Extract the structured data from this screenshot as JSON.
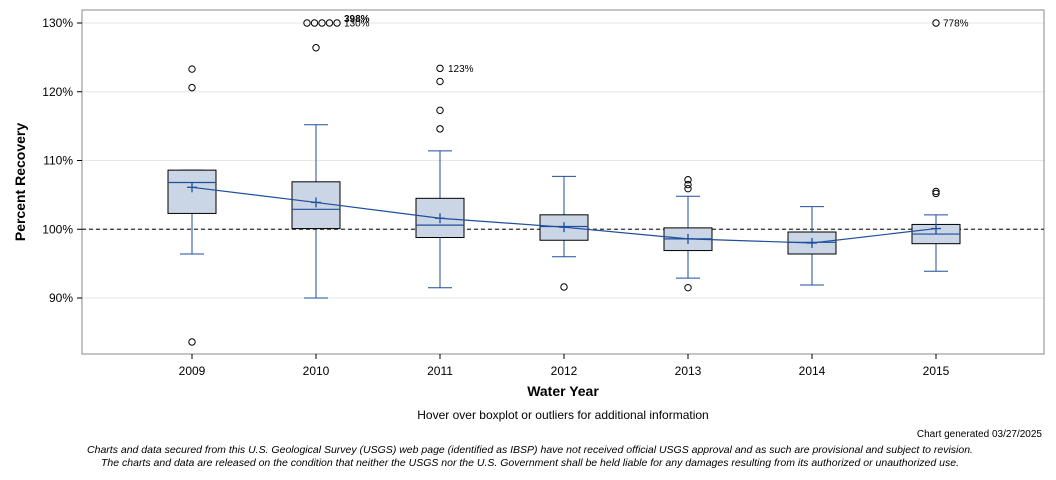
{
  "chart_data": {
    "type": "box",
    "xlabel": "Water Year",
    "ylabel": "Percent Recovery",
    "ylim": [
      81.5,
      131.5
    ],
    "yticks": [
      90,
      100,
      110,
      120,
      130
    ],
    "ytick_labels": [
      "90%",
      "100%",
      "110%",
      "120%",
      "130%"
    ],
    "reference_line": 100,
    "categories": [
      "2009",
      "2010",
      "2011",
      "2012",
      "2013",
      "2014",
      "2015"
    ],
    "boxes": [
      {
        "year": "2009",
        "q1": 102.3,
        "median": 106.8,
        "q3": 108.6,
        "whisker_low": 96.4,
        "whisker_high": 108.6,
        "mean": 106.1,
        "outliers": [
          123.3,
          120.6,
          83.6
        ]
      },
      {
        "year": "2010",
        "q1": 100.1,
        "median": 102.9,
        "q3": 106.9,
        "whisker_low": 90.0,
        "whisker_high": 115.2,
        "mean": 103.9,
        "outliers": [
          126.4
        ]
      },
      {
        "year": "2011",
        "q1": 98.8,
        "median": 100.6,
        "q3": 104.5,
        "whisker_low": 91.5,
        "whisker_high": 111.4,
        "mean": 101.6,
        "outliers": [
          123.4,
          121.5,
          117.3,
          114.6
        ]
      },
      {
        "year": "2012",
        "q1": 98.4,
        "median": 100.4,
        "q3": 102.1,
        "whisker_low": 96.0,
        "whisker_high": 107.7,
        "mean": 100.3,
        "outliers": [
          91.6
        ]
      },
      {
        "year": "2013",
        "q1": 96.9,
        "median": 98.6,
        "q3": 100.2,
        "whisker_low": 92.9,
        "whisker_high": 104.8,
        "mean": 98.6,
        "outliers": [
          107.2,
          106.5,
          105.9,
          91.5
        ]
      },
      {
        "year": "2014",
        "q1": 96.4,
        "median": 98.1,
        "q3": 99.6,
        "whisker_low": 91.9,
        "whisker_high": 103.3,
        "mean": 98.0,
        "outliers": []
      },
      {
        "year": "2015",
        "q1": 97.9,
        "median": 99.3,
        "q3": 100.7,
        "whisker_low": 93.9,
        "whisker_high": 102.1,
        "mean": 100.1,
        "outliers": [
          105.5,
          105.2
        ]
      }
    ],
    "clipped_outliers": [
      {
        "year": "2010",
        "count": 5,
        "labels": [
          "398%",
          "130%"
        ]
      },
      {
        "year": "2015",
        "count": 1,
        "labels": [
          "778%"
        ]
      }
    ],
    "outlier_annotations": [
      {
        "year": "2011",
        "value": 123.4,
        "label": "123%"
      }
    ],
    "colors": {
      "box_fill": "#cad5e5",
      "box_stroke": "#000000",
      "whisker": "#1f4e9c",
      "median_line": "#1f4e9c",
      "mean_marker": "#1f4e9c",
      "grid": "#e6e6e6",
      "reference": "#333333"
    }
  },
  "footer": {
    "hover_note": "Hover over boxplot or outliers for additional information",
    "generated": "Chart generated 03/27/2025",
    "disclaimer_line1": "Charts and data secured from this U.S. Geological Survey (USGS) web page (identified as IBSP) have not received official USGS approval and as such are provisional and subject to revision.",
    "disclaimer_line2": "The charts and data are released on the condition that neither the USGS nor the U.S. Government shall be held liable for any damages resulting from its authorized or unauthorized use."
  }
}
